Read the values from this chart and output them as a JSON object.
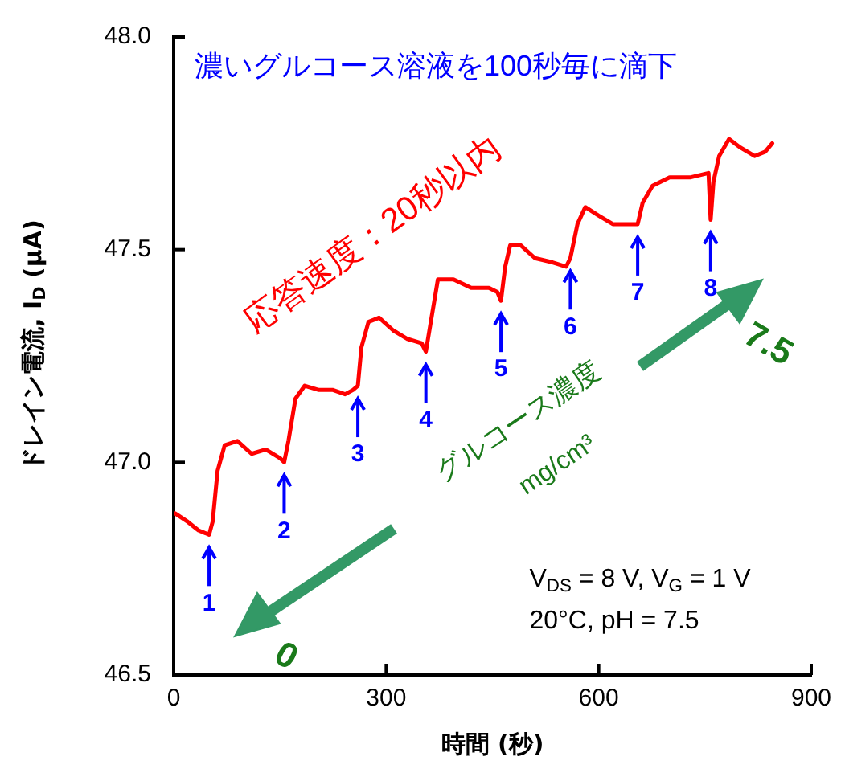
{
  "chart_data": {
    "type": "line",
    "xlabel": "時間 (秒)",
    "ylabel": "ドレイン電流, I$_{D}$ (μA)",
    "xlim": [
      0,
      900
    ],
    "xticks": [
      0,
      300,
      600,
      900
    ],
    "ylim": [
      46.5,
      48.0
    ],
    "yticks": [
      {
        "value": 46.5,
        "label": "46.5"
      },
      {
        "value": 47.0,
        "label": "47.0"
      },
      {
        "value": 47.5,
        "label": "47.5"
      },
      {
        "value": 48.0,
        "label": "48.0"
      }
    ],
    "grid": false,
    "legend": false,
    "marker": "none",
    "line_style": "solid",
    "series": [
      {
        "color": "#ff0000",
        "x": [
          2,
          20,
          35,
          50,
          55,
          62,
          72,
          90,
          110,
          130,
          150,
          156,
          162,
          172,
          185,
          205,
          225,
          242,
          253,
          260,
          265,
          275,
          290,
          310,
          330,
          350,
          356,
          362,
          373,
          395,
          420,
          445,
          457,
          462,
          468,
          475,
          490,
          510,
          535,
          554,
          560,
          570,
          581,
          600,
          620,
          644,
          655,
          662,
          676,
          700,
          730,
          755,
          758,
          762,
          770,
          784,
          800,
          820,
          835,
          845
        ],
        "values": [
          46.88,
          46.86,
          46.84,
          46.83,
          46.86,
          46.98,
          47.04,
          47.05,
          47.02,
          47.03,
          47.01,
          47.0,
          47.05,
          47.15,
          47.18,
          47.17,
          47.17,
          47.16,
          47.17,
          47.18,
          47.27,
          47.33,
          47.34,
          47.31,
          47.29,
          47.28,
          47.26,
          47.32,
          47.43,
          47.43,
          47.41,
          47.41,
          47.4,
          47.38,
          47.46,
          47.51,
          47.51,
          47.48,
          47.47,
          47.46,
          47.48,
          47.56,
          47.6,
          47.58,
          47.56,
          47.56,
          47.56,
          47.61,
          47.65,
          47.67,
          47.67,
          47.68,
          47.57,
          47.66,
          47.72,
          47.76,
          47.74,
          47.72,
          47.73,
          47.75
        ]
      }
    ],
    "annotations": [
      {
        "text": "1",
        "x": 50,
        "y": 46.83
      },
      {
        "text": "2",
        "x": 156,
        "y": 47.0
      },
      {
        "text": "3",
        "x": 260,
        "y": 47.18
      },
      {
        "text": "4",
        "x": 356,
        "y": 47.26
      },
      {
        "text": "5",
        "x": 462,
        "y": 47.38
      },
      {
        "text": "6",
        "x": 560,
        "y": 47.48
      },
      {
        "text": "7",
        "x": 655,
        "y": 47.56
      },
      {
        "text": "8",
        "x": 758,
        "y": 47.57
      },
      "濃いグルコース溶液を100秒毎に滴下",
      "応答速度：20秒以内",
      "グルコース濃度",
      "mg/cm³",
      "7.5",
      "0",
      "V$_{DS}$ = 8 V, V$_{G}$ = 1 V",
      "20°C, pH = 7.5"
    ]
  }
}
